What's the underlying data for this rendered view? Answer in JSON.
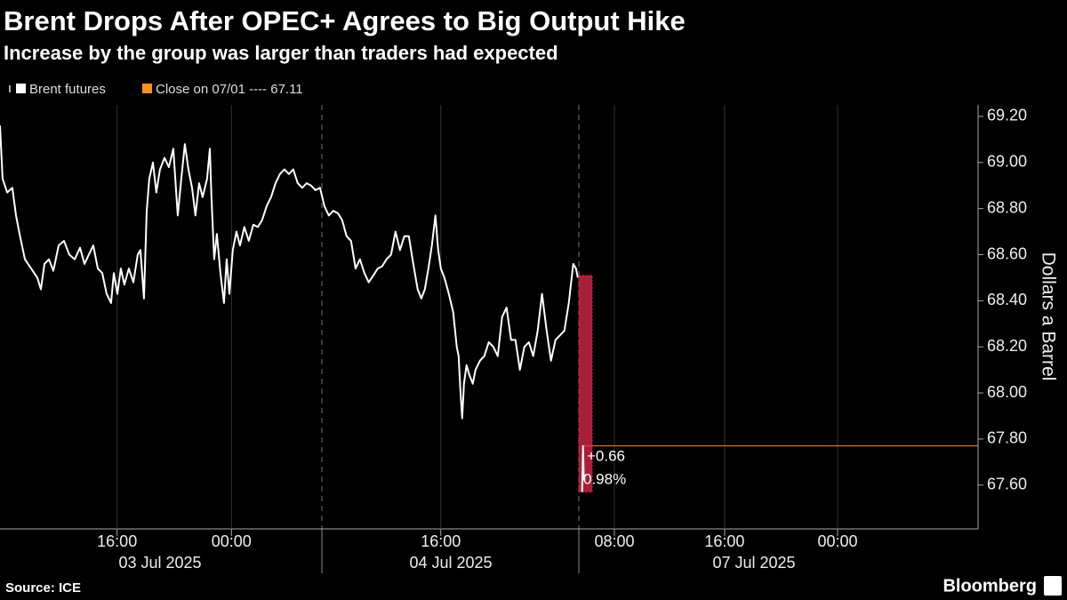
{
  "chart_data": {
    "type": "line",
    "title": "Brent Drops After OPEC+ Agrees to Big Output Hike",
    "subtitle": "Increase by the group was larger than traders had expected",
    "y_axis_label": "Dollars a Barrel",
    "source": "Source: ICE",
    "brand": "Bloomberg",
    "close_legend": {
      "label": "Close on 07/01 ---- 67.11",
      "color": "#f7921e"
    },
    "close_line_value": 67.77,
    "change_box": {
      "values": [
        68.51,
        67.57
      ],
      "color": "#e0284a"
    },
    "annotations": [
      "+0.66",
      "0.98%"
    ],
    "date_labels": [
      "03 Jul 2025",
      "04 Jul 2025",
      "07 Jul 2025"
    ],
    "xlim": [
      0,
      71
    ],
    "xticks": [
      {
        "value": 8.5,
        "label": "16:00"
      },
      {
        "value": 16.8,
        "label": "00:00"
      },
      {
        "value": 32,
        "label": "16:00"
      },
      {
        "value": 44.6,
        "label": "08:00"
      },
      {
        "value": 52.6,
        "label": "16:00"
      },
      {
        "value": 60.8,
        "label": "00:00"
      }
    ],
    "ylim": [
      67.41,
      69.25
    ],
    "yticks": [
      {
        "value": 67.6,
        "label": "67.60"
      },
      {
        "value": 67.8,
        "label": "67.80"
      },
      {
        "value": 68,
        "label": "68.00"
      },
      {
        "value": 68.2,
        "label": "68.20"
      },
      {
        "value": 68.4,
        "label": "68.40"
      },
      {
        "value": 68.6,
        "label": "68.60"
      },
      {
        "value": 68.8,
        "label": "68.80"
      },
      {
        "value": 69,
        "label": "69.00"
      },
      {
        "value": 69.2,
        "label": "69.20"
      }
    ],
    "grid": true,
    "series": [
      {
        "name": "Brent futures",
        "color": "#ffffff",
        "x": [
          0,
          0.19,
          0.52,
          0.9,
          1.16,
          1.42,
          1.81,
          2.26,
          2.71,
          2.97,
          3.23,
          3.55,
          3.87,
          4.26,
          4.65,
          5.03,
          5.42,
          5.81,
          6.13,
          6.45,
          6.77,
          7.1,
          7.42,
          7.74,
          8.06,
          8.26,
          8.52,
          8.77,
          9.03,
          9.35,
          9.68,
          10,
          10.19,
          10.45,
          10.65,
          10.84,
          11.1,
          11.35,
          11.61,
          11.94,
          12.26,
          12.58,
          12.9,
          13.16,
          13.42,
          13.68,
          13.94,
          14.19,
          14.45,
          14.71,
          15.03,
          15.23,
          15.35,
          15.55,
          15.74,
          16,
          16.26,
          16.45,
          16.65,
          16.9,
          17.16,
          17.42,
          17.74,
          18.06,
          18.39,
          18.71,
          19.03,
          19.35,
          19.68,
          20,
          20.32,
          20.65,
          20.97,
          21.29,
          21.61,
          21.94,
          22.26,
          22.58,
          22.9,
          23.23,
          23.55,
          23.87,
          24.19,
          24.52,
          24.84,
          25.16,
          25.48,
          25.81,
          26.13,
          26.45,
          26.77,
          27.1,
          27.42,
          27.74,
          28.06,
          28.39,
          28.71,
          29.03,
          29.35,
          29.68,
          30,
          30.32,
          30.58,
          30.84,
          31.1,
          31.35,
          31.61,
          31.81,
          32,
          32.26,
          32.58,
          32.9,
          33.16,
          33.29,
          33.42,
          33.55,
          33.68,
          33.87,
          34.06,
          34.32,
          34.52,
          34.84,
          35.16,
          35.48,
          35.81,
          36.13,
          36.45,
          36.77,
          37.1,
          37.42,
          37.74,
          38.06,
          38.39,
          38.71,
          39.03,
          39.35,
          39.68,
          40,
          40.32,
          40.65,
          40.97,
          41.29,
          41.61,
          41.81,
          41.94,
          42.1,
          42.26,
          42.32,
          42.38
        ],
        "values": [
          69.16,
          68.93,
          68.87,
          68.89,
          68.77,
          68.69,
          68.58,
          68.54,
          68.5,
          68.45,
          68.56,
          68.58,
          68.53,
          68.64,
          68.66,
          68.6,
          68.58,
          68.63,
          68.56,
          68.6,
          68.64,
          68.54,
          68.52,
          68.43,
          68.39,
          68.52,
          68.43,
          68.54,
          68.47,
          68.54,
          68.48,
          68.6,
          68.62,
          68.41,
          68.79,
          68.93,
          69.0,
          68.87,
          68.97,
          69.02,
          68.98,
          69.06,
          68.77,
          68.93,
          69.08,
          68.97,
          68.89,
          68.77,
          68.91,
          68.85,
          68.93,
          69.06,
          68.85,
          68.58,
          68.69,
          68.52,
          68.39,
          68.58,
          68.43,
          68.62,
          68.7,
          68.64,
          68.72,
          68.66,
          68.73,
          68.72,
          68.75,
          68.81,
          68.85,
          68.91,
          68.95,
          68.97,
          68.95,
          68.97,
          68.91,
          68.89,
          68.91,
          68.9,
          68.88,
          68.89,
          68.81,
          68.77,
          68.79,
          68.78,
          68.75,
          68.68,
          68.66,
          68.54,
          68.58,
          68.52,
          68.48,
          68.51,
          68.54,
          68.55,
          68.58,
          68.6,
          68.7,
          68.62,
          68.68,
          68.68,
          68.56,
          68.45,
          68.41,
          68.45,
          68.54,
          68.64,
          68.77,
          68.62,
          68.54,
          68.5,
          68.43,
          68.35,
          68.2,
          68.16,
          68.01,
          67.89,
          68.04,
          68.12,
          68.08,
          68.04,
          68.1,
          68.14,
          68.16,
          68.22,
          68.2,
          68.16,
          68.33,
          68.37,
          68.23,
          68.23,
          68.1,
          68.2,
          68.22,
          68.16,
          68.27,
          68.43,
          68.27,
          68.14,
          68.23,
          68.25,
          68.27,
          68.39,
          68.56,
          68.54,
          68.5,
          null,
          67.57,
          67.77,
          67.62
        ]
      }
    ]
  }
}
